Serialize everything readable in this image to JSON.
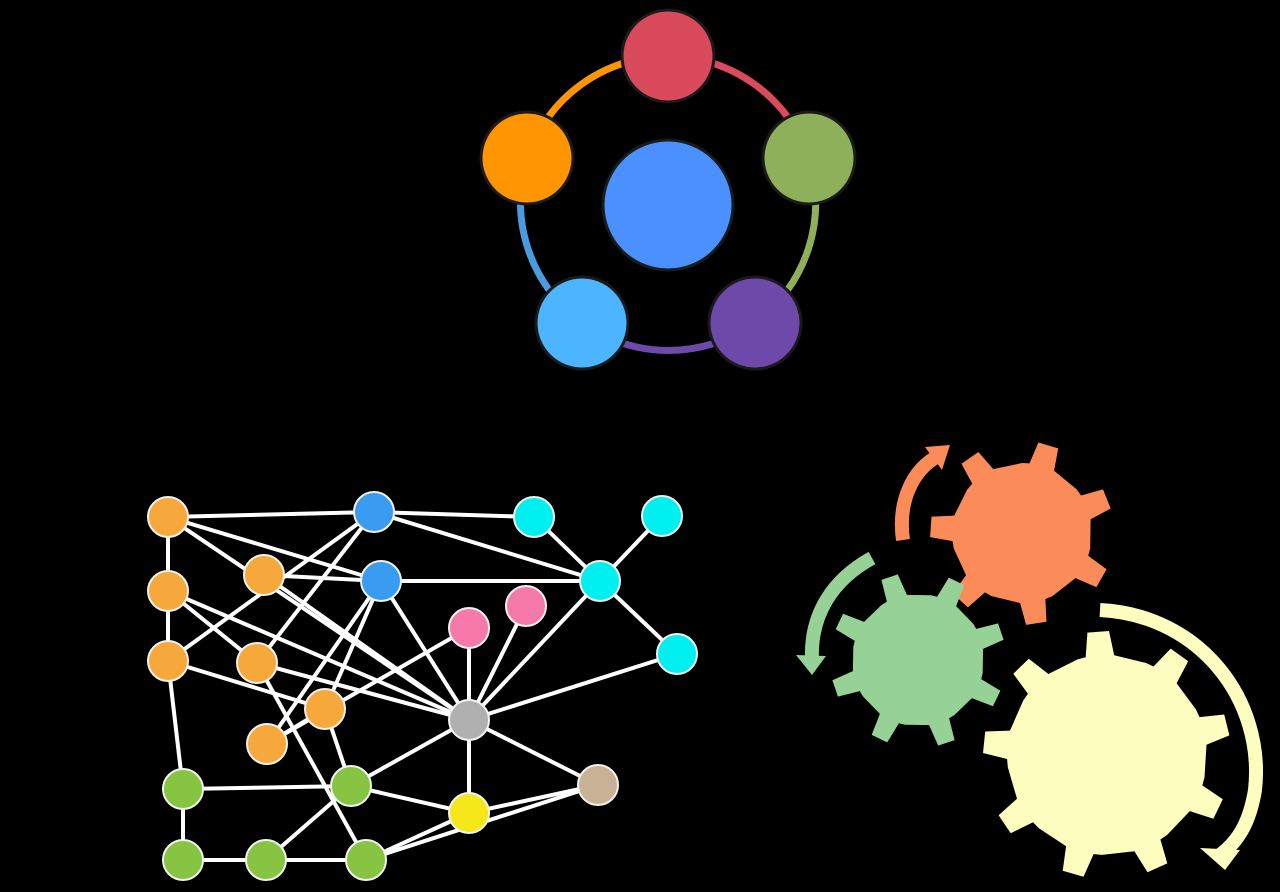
{
  "background": "#000000",
  "cycle_diagram": {
    "center_color": "#4a90ff",
    "node_stroke": "#1a1a1a",
    "nodes": [
      {
        "color": "#d94a5c"
      },
      {
        "color": "#8fb05a"
      },
      {
        "color": "#6d4aaa"
      },
      {
        "color": "#4db5ff"
      },
      {
        "color": "#ff9500"
      }
    ],
    "arcs": [
      {
        "color": "#d94a5c"
      },
      {
        "color": "#8fb05a"
      },
      {
        "color": "#6d4aaa"
      },
      {
        "color": "#4a9ae0"
      },
      {
        "color": "#ff9500"
      }
    ]
  },
  "network_diagram": {
    "edge_color": "#ffffff",
    "node_outline": "#f2f2f2",
    "nodes": [
      {
        "id": "o1",
        "group": "orange",
        "color": "#f7a83a"
      },
      {
        "id": "o2",
        "group": "orange",
        "color": "#f7a83a"
      },
      {
        "id": "o3",
        "group": "orange",
        "color": "#f7a83a"
      },
      {
        "id": "o4",
        "group": "orange",
        "color": "#f7a83a"
      },
      {
        "id": "o5",
        "group": "orange",
        "color": "#f7a83a"
      },
      {
        "id": "o6",
        "group": "orange",
        "color": "#f7a83a"
      },
      {
        "id": "o7",
        "group": "orange",
        "color": "#f7a83a"
      },
      {
        "id": "b1",
        "group": "blue",
        "color": "#3a9cf0"
      },
      {
        "id": "b2",
        "group": "blue",
        "color": "#3a9cf0"
      },
      {
        "id": "c1",
        "group": "cyan",
        "color": "#00f0f0"
      },
      {
        "id": "c2",
        "group": "cyan",
        "color": "#00f0f0"
      },
      {
        "id": "c3",
        "group": "cyan",
        "color": "#00f0f0"
      },
      {
        "id": "c4",
        "group": "cyan",
        "color": "#00f0f0"
      },
      {
        "id": "p1",
        "group": "pink",
        "color": "#f57aaa"
      },
      {
        "id": "p2",
        "group": "pink",
        "color": "#f57aaa"
      },
      {
        "id": "hub",
        "group": "gray",
        "color": "#b0b0b0"
      },
      {
        "id": "t1",
        "group": "tan",
        "color": "#c9b196"
      },
      {
        "id": "y1",
        "group": "yellow",
        "color": "#f5e81a"
      },
      {
        "id": "g1",
        "group": "green",
        "color": "#86c441"
      },
      {
        "id": "g2",
        "group": "green",
        "color": "#86c441"
      },
      {
        "id": "g3",
        "group": "green",
        "color": "#86c441"
      },
      {
        "id": "g4",
        "group": "green",
        "color": "#86c441"
      },
      {
        "id": "g5",
        "group": "green",
        "color": "#86c441"
      }
    ],
    "edges": [
      [
        "o1",
        "o2"
      ],
      [
        "o2",
        "o3"
      ],
      [
        "o1",
        "b1"
      ],
      [
        "o1",
        "b2"
      ],
      [
        "o1",
        "hub"
      ],
      [
        "o2",
        "o5"
      ],
      [
        "o2",
        "hub"
      ],
      [
        "o4",
        "b2"
      ],
      [
        "o4",
        "hub"
      ],
      [
        "o3",
        "o6"
      ],
      [
        "o3",
        "g1"
      ],
      [
        "o3",
        "b1"
      ],
      [
        "o6",
        "o7"
      ],
      [
        "o6",
        "b2"
      ],
      [
        "o6",
        "g3"
      ],
      [
        "o7",
        "b2"
      ],
      [
        "o7",
        "p1"
      ],
      [
        "o5",
        "hub"
      ],
      [
        "o5",
        "b1"
      ],
      [
        "o5",
        "g5"
      ],
      [
        "b1",
        "c1"
      ],
      [
        "b1",
        "c2"
      ],
      [
        "b2",
        "c2"
      ],
      [
        "b2",
        "hub"
      ],
      [
        "c1",
        "c2"
      ],
      [
        "c2",
        "c3"
      ],
      [
        "c2",
        "c4"
      ],
      [
        "c2",
        "hub"
      ],
      [
        "c4",
        "hub"
      ],
      [
        "p1",
        "hub"
      ],
      [
        "p2",
        "hub"
      ],
      [
        "hub",
        "t1"
      ],
      [
        "hub",
        "y1"
      ],
      [
        "hub",
        "g3"
      ],
      [
        "hub",
        "o5"
      ],
      [
        "g1",
        "g2"
      ],
      [
        "g1",
        "g3"
      ],
      [
        "g2",
        "g4"
      ],
      [
        "g4",
        "g5"
      ],
      [
        "g4",
        "g3"
      ],
      [
        "g3",
        "y1"
      ],
      [
        "g5",
        "y1"
      ],
      [
        "y1",
        "t1"
      ],
      [
        "g5",
        "t1"
      ]
    ]
  },
  "gears_diagram": {
    "gears": [
      {
        "name": "orange",
        "color": "#fb8c5a",
        "teeth": 7
      },
      {
        "name": "green",
        "color": "#96d196",
        "teeth": 8
      },
      {
        "name": "yellow",
        "color": "#fdfdbf",
        "teeth": 9
      }
    ],
    "arrows": [
      {
        "color": "#fb8c5a"
      },
      {
        "color": "#96d196"
      },
      {
        "color": "#fdfdbf"
      }
    ]
  }
}
